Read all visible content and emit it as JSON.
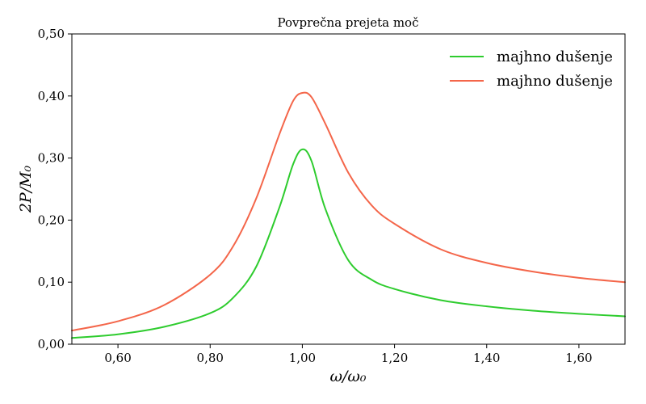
{
  "chart_data": {
    "type": "line",
    "title": "Povprečna prejeta moč",
    "xlabel": "ω/ω₀",
    "ylabel": "2P/M₀",
    "xlim": [
      0.5,
      1.7
    ],
    "ylim": [
      0.0,
      0.5
    ],
    "xticks": [
      0.6,
      0.8,
      1.0,
      1.2,
      1.4,
      1.6
    ],
    "xtick_labels": [
      "0,60",
      "0,80",
      "1,00",
      "1,20",
      "1,40",
      "1,60"
    ],
    "yticks": [
      0.0,
      0.1,
      0.2,
      0.3,
      0.4,
      0.5
    ],
    "ytick_labels": [
      "0,00",
      "0,10",
      "0,20",
      "0,30",
      "0,40",
      "0,50"
    ],
    "grid": false,
    "legend_position": "top-right",
    "x": [
      0.5,
      0.6,
      0.7,
      0.8,
      0.85,
      0.9,
      0.95,
      0.98,
      1.0,
      1.02,
      1.05,
      1.1,
      1.15,
      1.2,
      1.3,
      1.4,
      1.5,
      1.6,
      1.7
    ],
    "series": [
      {
        "name": "majhno dušenje",
        "color": "#2ecc2e",
        "values": [
          0.01,
          0.016,
          0.028,
          0.05,
          0.075,
          0.125,
          0.22,
          0.29,
          0.314,
          0.295,
          0.218,
          0.135,
          0.104,
          0.089,
          0.071,
          0.061,
          0.054,
          0.049,
          0.045
        ]
      },
      {
        "name": "majhno dušenje",
        "color": "#f4664a",
        "values": [
          0.022,
          0.037,
          0.063,
          0.112,
          0.158,
          0.235,
          0.338,
          0.392,
          0.405,
          0.398,
          0.355,
          0.276,
          0.224,
          0.194,
          0.153,
          0.131,
          0.117,
          0.107,
          0.1
        ]
      }
    ]
  }
}
